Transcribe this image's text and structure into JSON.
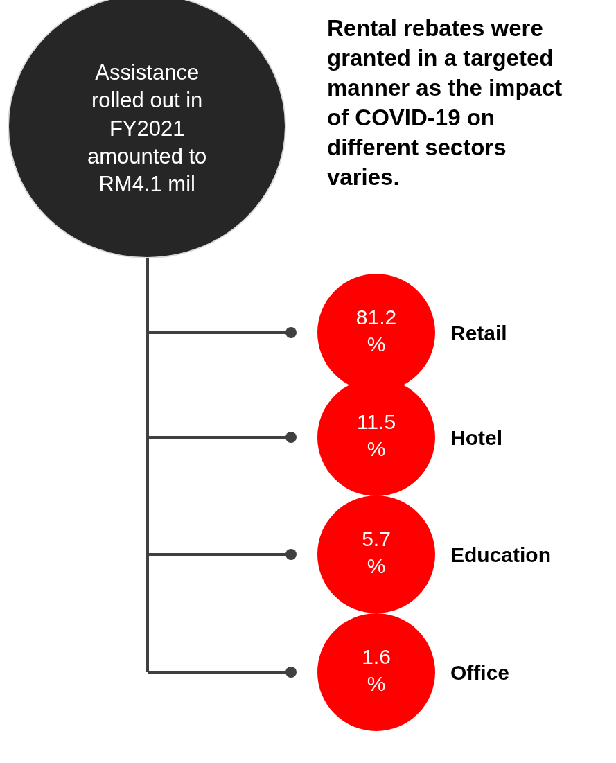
{
  "chart_data": {
    "type": "other",
    "title": "Rental rebates were granted in a targeted manner as the impact of COVID-19 on different sectors varies.",
    "annotations": [
      "Assistance rolled out in FY2021 amounted to RM4.1 mil"
    ],
    "categories": [
      "Retail",
      "Hotel",
      "Education",
      "Office"
    ],
    "values": [
      81.2,
      11.5,
      5.7,
      1.6
    ],
    "value_labels": [
      "81.2 %",
      "11.5 %",
      "5.7 %",
      "1.6 %"
    ],
    "color": "#ff0000"
  }
}
